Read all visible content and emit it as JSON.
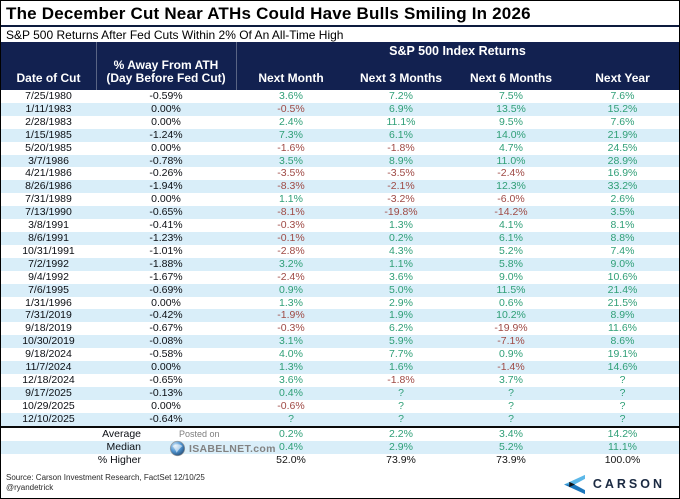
{
  "chart_data": {
    "type": "table",
    "title": "The December Cut Near ATHs Could Have Bulls Smiling In 2026",
    "subtitle": "S&P 500 Returns After Fed Cuts Within 2% Of An All-Time High",
    "group_header": "S&P 500 Index Returns",
    "columns": [
      {
        "label": "Date of Cut",
        "sublabel": ""
      },
      {
        "label": "% Away From ATH",
        "sublabel": "(Day Before Fed Cut)"
      },
      {
        "label": "Next Month",
        "sublabel": ""
      },
      {
        "label": "Next 3 Months",
        "sublabel": ""
      },
      {
        "label": "Next 6 Months",
        "sublabel": ""
      },
      {
        "label": "Next Year",
        "sublabel": ""
      }
    ],
    "rows": [
      [
        "7/25/1980",
        "-0.59%",
        "3.6%",
        "7.2%",
        "7.5%",
        "7.6%"
      ],
      [
        "1/11/1983",
        "0.00%",
        "-0.5%",
        "6.9%",
        "13.5%",
        "15.2%"
      ],
      [
        "2/28/1983",
        "0.00%",
        "2.4%",
        "11.1%",
        "9.5%",
        "7.6%"
      ],
      [
        "1/15/1985",
        "-1.24%",
        "7.3%",
        "6.1%",
        "14.0%",
        "21.9%"
      ],
      [
        "5/20/1985",
        "0.00%",
        "-1.6%",
        "-1.8%",
        "4.7%",
        "24.5%"
      ],
      [
        "3/7/1986",
        "-0.78%",
        "3.5%",
        "8.9%",
        "11.0%",
        "28.9%"
      ],
      [
        "4/21/1986",
        "-0.26%",
        "-3.5%",
        "-3.5%",
        "-2.4%",
        "16.9%"
      ],
      [
        "8/26/1986",
        "-1.94%",
        "-8.3%",
        "-2.1%",
        "12.3%",
        "33.2%"
      ],
      [
        "7/31/1989",
        "0.00%",
        "1.1%",
        "-3.2%",
        "-6.0%",
        "2.6%"
      ],
      [
        "7/13/1990",
        "-0.65%",
        "-8.1%",
        "-19.8%",
        "-14.2%",
        "3.5%"
      ],
      [
        "3/8/1991",
        "-0.41%",
        "-0.3%",
        "1.3%",
        "4.1%",
        "8.1%"
      ],
      [
        "8/6/1991",
        "-1.23%",
        "-0.1%",
        "0.2%",
        "6.1%",
        "8.8%"
      ],
      [
        "10/31/1991",
        "-1.01%",
        "-2.8%",
        "4.3%",
        "5.2%",
        "7.4%"
      ],
      [
        "7/2/1992",
        "-1.88%",
        "3.2%",
        "1.1%",
        "5.8%",
        "9.0%"
      ],
      [
        "9/4/1992",
        "-1.67%",
        "-2.4%",
        "3.6%",
        "9.0%",
        "10.6%"
      ],
      [
        "7/6/1995",
        "-0.69%",
        "0.9%",
        "5.0%",
        "11.5%",
        "21.4%"
      ],
      [
        "1/31/1996",
        "0.00%",
        "1.3%",
        "2.9%",
        "0.6%",
        "21.5%"
      ],
      [
        "7/31/2019",
        "-0.42%",
        "-1.9%",
        "1.9%",
        "10.2%",
        "8.9%"
      ],
      [
        "9/18/2019",
        "-0.67%",
        "-0.3%",
        "6.2%",
        "-19.9%",
        "11.6%"
      ],
      [
        "10/30/2019",
        "-0.08%",
        "3.1%",
        "5.9%",
        "-7.1%",
        "8.6%"
      ],
      [
        "9/18/2024",
        "-0.58%",
        "4.0%",
        "7.7%",
        "0.9%",
        "19.1%"
      ],
      [
        "11/7/2024",
        "0.00%",
        "1.3%",
        "1.6%",
        "-1.4%",
        "14.6%"
      ],
      [
        "12/18/2024",
        "-0.65%",
        "3.6%",
        "-1.8%",
        "3.7%",
        "?"
      ],
      [
        "9/17/2025",
        "-0.13%",
        "0.4%",
        "?",
        "?",
        "?"
      ],
      [
        "10/29/2025",
        "0.00%",
        "-0.6%",
        "?",
        "?",
        "?"
      ],
      [
        "12/10/2025",
        "-0.64%",
        "?",
        "?",
        "?",
        "?"
      ]
    ],
    "summary_rows": [
      {
        "label": "Average",
        "values": [
          "0.2%",
          "2.2%",
          "3.4%",
          "14.2%"
        ],
        "plain": false
      },
      {
        "label": "Median",
        "values": [
          "0.4%",
          "2.9%",
          "5.2%",
          "11.1%"
        ],
        "plain": false
      },
      {
        "label": "% Higher",
        "values": [
          "52.0%",
          "73.9%",
          "73.9%",
          "100.0%"
        ],
        "plain": true
      }
    ]
  },
  "watermark": {
    "line1": "Posted on",
    "line2": "ISABELNET.com"
  },
  "footer": {
    "source": "Source: Carson Investment Research, FactSet 12/10/25",
    "handle": "@ryandetrick",
    "brand": "CARSON"
  },
  "colors": {
    "header_navy": "#122150",
    "stripe_blue": "#d9eef9",
    "positive_green": "#2f9f77",
    "negative_red": "#9f4a45",
    "carson_light_blue": "#5bb7e8",
    "carson_blue": "#1b75bb"
  }
}
